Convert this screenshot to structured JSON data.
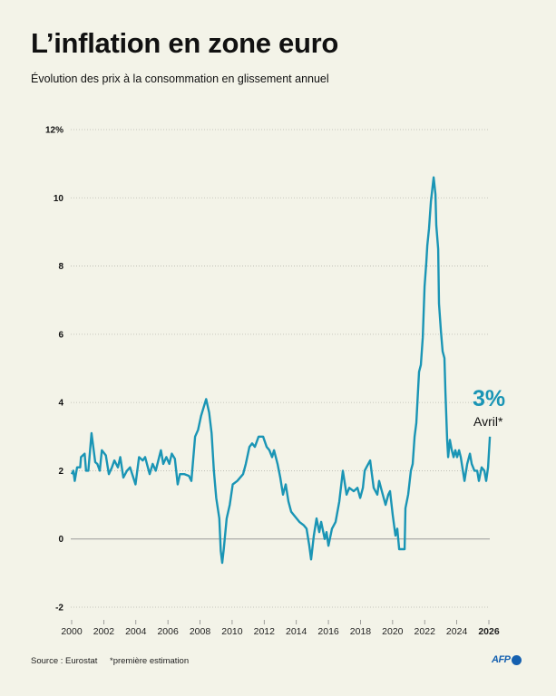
{
  "title": "L’inflation en zone euro",
  "subtitle": "Évolution des prix à la consommation en glissement annuel",
  "annotation": {
    "value": "3%",
    "label": "Avril*"
  },
  "footer": {
    "source": "Source : Eurostat",
    "note": "*première estimation",
    "logo": "AFP"
  },
  "colors": {
    "line": "#1a95b5",
    "background": "#f3f3e8",
    "zero_line": "#999999",
    "logo": "#1560b0"
  },
  "chart_data": {
    "type": "line",
    "title": "L’inflation en zone euro",
    "subtitle": "Évolution des prix à la consommation en glissement annuel",
    "xlabel": "",
    "ylabel": "",
    "xlim": [
      2000,
      2026
    ],
    "ylim": [
      -2,
      12
    ],
    "y_ticks": [
      {
        "v": 12,
        "label": "12%"
      },
      {
        "v": 10,
        "label": "10"
      },
      {
        "v": 8,
        "label": "8"
      },
      {
        "v": 6,
        "label": "6"
      },
      {
        "v": 4,
        "label": "4"
      },
      {
        "v": 2,
        "label": "2"
      },
      {
        "v": 0,
        "label": "0"
      },
      {
        "v": -2,
        "label": "-2"
      }
    ],
    "x_ticks": [
      {
        "v": 2000,
        "label": "2000"
      },
      {
        "v": 2002,
        "label": "2002"
      },
      {
        "v": 2004,
        "label": "2004"
      },
      {
        "v": 2006,
        "label": "2006"
      },
      {
        "v": 2008,
        "label": "2008"
      },
      {
        "v": 2010,
        "label": "2010"
      },
      {
        "v": 2012,
        "label": "2012"
      },
      {
        "v": 2014,
        "label": "2014"
      },
      {
        "v": 2016,
        "label": "2016"
      },
      {
        "v": 2018,
        "label": "2018"
      },
      {
        "v": 2020,
        "label": "2020"
      },
      {
        "v": 2022,
        "label": "2022"
      },
      {
        "v": 2024,
        "label": "2024"
      },
      {
        "v": 2026,
        "label": "2026"
      }
    ],
    "grid": "horizontal dotted",
    "series": [
      {
        "x": [
          2000.0,
          2000.11,
          2000.19,
          2000.34,
          2000.53,
          2000.58,
          2000.81,
          2000.9,
          2001.04,
          2001.24,
          2001.47,
          2001.6,
          2001.75,
          2001.88,
          2002.13,
          2002.32,
          2002.51,
          2002.66,
          2002.88,
          2003.03,
          2003.22,
          2003.45,
          2003.64,
          2003.98,
          2004.2,
          2004.43,
          2004.58,
          2004.86,
          2005.05,
          2005.24,
          2005.56,
          2005.71,
          2005.9,
          2006.09,
          2006.24,
          2006.43,
          2006.61,
          2006.75,
          2007.03,
          2007.31,
          2007.46,
          2007.69,
          2007.88,
          2008.06,
          2008.25,
          2008.38,
          2008.57,
          2008.72,
          2008.86,
          2009.01,
          2009.2,
          2009.29,
          2009.38,
          2009.48,
          2009.66,
          2009.85,
          2010.04,
          2010.32,
          2010.68,
          2010.85,
          2011.08,
          2011.25,
          2011.42,
          2011.65,
          2011.93,
          2012.15,
          2012.32,
          2012.49,
          2012.61,
          2012.83,
          2013.0,
          2013.17,
          2013.34,
          2013.51,
          2013.68,
          2013.85,
          2014.19,
          2014.47,
          2014.64,
          2014.81,
          2014.92,
          2015.09,
          2015.26,
          2015.43,
          2015.55,
          2015.77,
          2015.88,
          2016.0,
          2016.22,
          2016.45,
          2016.68,
          2016.9,
          2017.13,
          2017.3,
          2017.58,
          2017.81,
          2017.98,
          2018.15,
          2018.26,
          2018.37,
          2018.6,
          2018.71,
          2018.82,
          2019.05,
          2019.16,
          2019.33,
          2019.56,
          2019.73,
          2019.84,
          2020.01,
          2020.18,
          2020.29,
          2020.41,
          2020.75,
          2020.8,
          2020.97,
          2021.14,
          2021.25,
          2021.37,
          2021.48,
          2021.65,
          2021.76,
          2021.88,
          2021.99,
          2022.1,
          2022.16,
          2022.27,
          2022.39,
          2022.56,
          2022.67,
          2022.72,
          2022.84,
          2022.89,
          2023.01,
          2023.12,
          2023.23,
          2023.29,
          2023.4,
          2023.46,
          2023.57,
          2023.69,
          2023.8,
          2023.91,
          2024.02,
          2024.14,
          2024.25,
          2024.48,
          2024.65,
          2024.82,
          2024.93,
          2025.1,
          2025.27,
          2025.38,
          2025.55,
          2025.72,
          2025.83,
          2025.95,
          2026.06
        ],
        "y": [
          1.9,
          2.0,
          1.7,
          2.1,
          2.1,
          2.4,
          2.5,
          2.0,
          2.0,
          3.1,
          2.25,
          2.2,
          2.0,
          2.6,
          2.45,
          1.9,
          2.1,
          2.3,
          2.1,
          2.4,
          1.8,
          2.0,
          2.1,
          1.6,
          2.4,
          2.3,
          2.4,
          1.9,
          2.2,
          2.0,
          2.6,
          2.2,
          2.4,
          2.2,
          2.5,
          2.35,
          1.6,
          1.9,
          1.9,
          1.85,
          1.7,
          3.0,
          3.2,
          3.6,
          3.9,
          4.1,
          3.7,
          3.1,
          2.0,
          1.2,
          0.6,
          -0.35,
          -0.7,
          -0.3,
          0.6,
          1.0,
          1.6,
          1.7,
          1.9,
          2.2,
          2.7,
          2.8,
          2.7,
          3.0,
          3.0,
          2.7,
          2.6,
          2.4,
          2.6,
          2.2,
          1.8,
          1.3,
          1.6,
          1.1,
          0.8,
          0.7,
          0.5,
          0.4,
          0.3,
          -0.2,
          -0.6,
          0.1,
          0.6,
          0.2,
          0.5,
          0.0,
          0.2,
          -0.2,
          0.3,
          0.5,
          1.1,
          2.0,
          1.3,
          1.5,
          1.4,
          1.5,
          1.2,
          1.5,
          2.0,
          2.1,
          2.3,
          1.9,
          1.5,
          1.3,
          1.7,
          1.4,
          1.0,
          1.3,
          1.4,
          0.7,
          0.1,
          0.3,
          -0.3,
          -0.3,
          0.9,
          1.3,
          2.0,
          2.2,
          3.0,
          3.4,
          4.9,
          5.1,
          5.9,
          7.4,
          8.1,
          8.6,
          9.1,
          9.9,
          10.6,
          10.1,
          9.2,
          8.5,
          6.9,
          6.1,
          5.5,
          5.3,
          4.3,
          2.9,
          2.4,
          2.9,
          2.6,
          2.4,
          2.6,
          2.4,
          2.6,
          2.4,
          1.7,
          2.2,
          2.5,
          2.2,
          2.0,
          2.0,
          1.7,
          2.1,
          2.0,
          1.7,
          2.1,
          3.0
        ]
      }
    ],
    "annotations": [
      {
        "x": 2026.06,
        "value": "3%",
        "label": "Avril*"
      }
    ]
  }
}
